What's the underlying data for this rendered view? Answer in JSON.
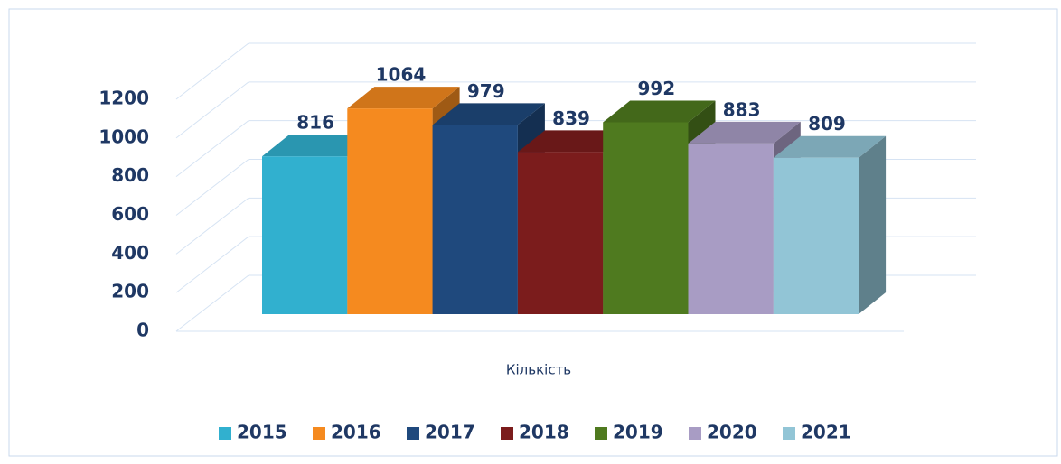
{
  "chart_data": {
    "type": "bar3d",
    "categories": [
      "Кількість"
    ],
    "series": [
      {
        "name": "2015",
        "color": "#31b0cf",
        "values": [
          816
        ]
      },
      {
        "name": "2016",
        "color": "#f58a1f",
        "values": [
          1064
        ]
      },
      {
        "name": "2017",
        "color": "#1f497d",
        "values": [
          979
        ]
      },
      {
        "name": "2018",
        "color": "#7b1c1c",
        "values": [
          839
        ]
      },
      {
        "name": "2019",
        "color": "#4f7a1f",
        "values": [
          992
        ]
      },
      {
        "name": "2020",
        "color": "#a89cc4",
        "values": [
          883
        ]
      },
      {
        "name": "2021",
        "color": "#92c5d6",
        "values": [
          809
        ]
      }
    ],
    "ylim": [
      0,
      1200
    ],
    "yticks": [
      0,
      200,
      400,
      600,
      800,
      1000,
      1200
    ],
    "grid": true,
    "legend": "bottom"
  }
}
